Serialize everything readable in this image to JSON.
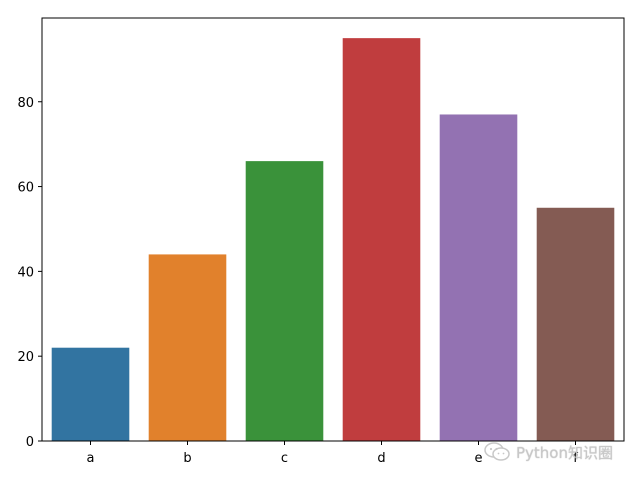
{
  "chart_data": {
    "type": "bar",
    "categories": [
      "a",
      "b",
      "c",
      "d",
      "e",
      "f"
    ],
    "values": [
      22,
      44,
      66,
      95,
      77,
      55
    ],
    "colors": [
      "#3274a1",
      "#e1812c",
      "#3a923a",
      "#c03d3e",
      "#9372b2",
      "#845b53"
    ],
    "ylim": [
      0,
      99.75
    ],
    "yticks": [
      0,
      20,
      40,
      60,
      80
    ],
    "title": "",
    "xlabel": "",
    "ylabel": "",
    "grid": false,
    "legend": "none"
  },
  "watermark": {
    "text": "Python知识圈",
    "icon": "wechat-icon"
  }
}
